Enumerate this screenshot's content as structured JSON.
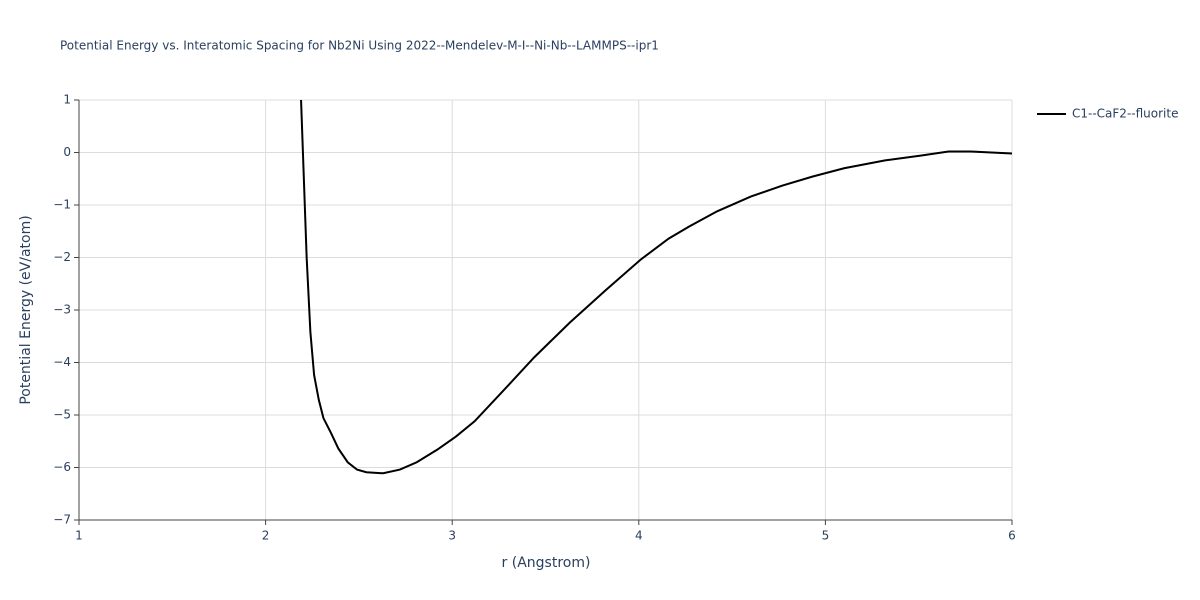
{
  "chart_data": {
    "type": "line",
    "title": "Potential Energy vs. Interatomic Spacing for Nb2Ni Using 2022--Mendelev-M-I--Ni-Nb--LAMMPS--ipr1",
    "x_label": "r (Angstrom)",
    "y_label": "Potential Energy (eV/atom)",
    "x": [
      2.19,
      2.2,
      2.22,
      2.24,
      2.26,
      2.285,
      2.31,
      2.35,
      2.39,
      2.44,
      2.49,
      2.54,
      2.63,
      2.72,
      2.81,
      2.92,
      3.02,
      3.12,
      3.26,
      3.44,
      3.63,
      3.82,
      4.01,
      4.16,
      4.27,
      4.42,
      4.6,
      4.77,
      4.93,
      5.1,
      5.32,
      5.51,
      5.66,
      5.78,
      6.0
    ],
    "series": [
      {
        "name": "C1--CaF2--fluorite",
        "color": "#000000",
        "values": [
          1.0,
          0.0,
          -2.0,
          -3.42,
          -4.24,
          -4.71,
          -5.06,
          -5.34,
          -5.64,
          -5.9,
          -6.04,
          -6.09,
          -6.11,
          -6.04,
          -5.9,
          -5.66,
          -5.41,
          -5.12,
          -4.59,
          -3.9,
          -3.24,
          -2.63,
          -2.04,
          -1.64,
          -1.41,
          -1.12,
          -0.84,
          -0.63,
          -0.46,
          -0.3,
          -0.15,
          -0.06,
          0.02,
          0.02,
          -0.02
        ]
      }
    ],
    "xlim": [
      1,
      6
    ],
    "xticks": [
      1,
      2,
      3,
      4,
      5,
      6
    ],
    "ylim": [
      -7,
      1
    ],
    "yticks": [
      {
        "value": -7,
        "label": "−7"
      },
      {
        "value": -6,
        "label": "−6"
      },
      {
        "value": -5,
        "label": "−5"
      },
      {
        "value": -4,
        "label": "−4"
      },
      {
        "value": -3,
        "label": "−3"
      },
      {
        "value": -2,
        "label": "−2"
      },
      {
        "value": -1,
        "label": "−1"
      },
      0,
      1
    ],
    "grid": true,
    "legend": "right"
  }
}
